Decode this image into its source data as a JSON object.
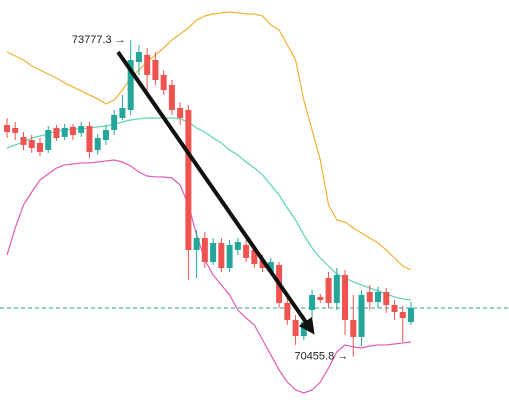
{
  "chart_data": {
    "type": "candlestick",
    "ylim": [
      69979,
      74200
    ],
    "up_color": "#26a69a",
    "down_color": "#ef5350",
    "candles": {
      "open": [
        72888,
        72856,
        72762,
        72730,
        72699,
        72625,
        72856,
        72762,
        72868,
        72804,
        72877,
        72625,
        72730,
        72835,
        72961,
        73045,
        73549,
        73623,
        73570,
        73413,
        73308,
        73066,
        73045,
        71575,
        71701,
        71449,
        71649,
        71386,
        71575,
        71628,
        71575,
        71470,
        71344,
        71418,
        71019,
        70840,
        70672,
        70945,
        71082,
        71281,
        71019,
        71313,
        70840,
        70662,
        71134,
        71029,
        71134,
        70998,
        70924,
        70819
      ],
      "high": [
        72961,
        72919,
        72814,
        72783,
        72751,
        72877,
        72888,
        72898,
        72898,
        72919,
        72919,
        72793,
        72888,
        73045,
        73203,
        73777.3,
        73728,
        73696,
        73654,
        73465,
        73360,
        73129,
        73098,
        71785,
        71764,
        71701,
        71701,
        71680,
        71701,
        71680,
        71628,
        71523,
        71491,
        71449,
        71071,
        70893,
        70893,
        71155,
        71113,
        71344,
        71386,
        71365,
        71103,
        71155,
        71208,
        71187,
        71176,
        71050,
        70987,
        71029
      ],
      "low": [
        72751,
        72730,
        72625,
        72594,
        72562,
        72594,
        72721,
        72730,
        72730,
        72762,
        72541,
        72573,
        72678,
        72783,
        72940,
        72993,
        73413,
        73255,
        73308,
        73203,
        72993,
        72888,
        71260,
        71281,
        71386,
        71418,
        71344,
        71344,
        71523,
        71449,
        71386,
        71344,
        71313,
        70966,
        70788,
        70578,
        70630,
        70861,
        71019,
        70966,
        70945,
        70683,
        70455.8,
        70567,
        70945,
        70966,
        70914,
        70840,
        70609,
        70788
      ],
      "close": [
        72814,
        72804,
        72678,
        72646,
        72604,
        72835,
        72751,
        72856,
        72783,
        72877,
        72604,
        72751,
        72835,
        72993,
        73066,
        73570,
        73654,
        73413,
        73360,
        73255,
        73045,
        72961,
        71575,
        71701,
        71449,
        71649,
        71386,
        71628,
        71659,
        71491,
        71428,
        71386,
        71449,
        71019,
        70840,
        70672,
        70819,
        71103,
        71050,
        71019,
        71313,
        70840,
        70662,
        71103,
        71029,
        71134,
        70998,
        70924,
        70861,
        70966
      ]
    },
    "lines": [
      {
        "color": "#f2b134",
        "values": [
          73654,
          73612,
          73570,
          73507,
          73465,
          73423,
          73381,
          73329,
          73287,
          73245,
          73203,
          73161,
          73108,
          73150,
          73255,
          73381,
          73465,
          73549,
          73623,
          73696,
          73780,
          73843,
          73906,
          73990,
          74032,
          74053,
          74064,
          74074,
          74064,
          74053,
          74053,
          74032,
          73938,
          73885,
          73728,
          73570,
          73150,
          72835,
          72520,
          72048,
          71890,
          71869,
          71806,
          71754,
          71701,
          71649,
          71575,
          71491,
          71407,
          71365
        ]
      },
      {
        "color": "#5fd3b8",
        "values": [
          72646,
          72678,
          72709,
          72751,
          72772,
          72793,
          72825,
          72835,
          72846,
          72846,
          72856,
          72867,
          72877,
          72898,
          72919,
          72940,
          72951,
          72961,
          72961,
          72961,
          72961,
          72951,
          72919,
          72856,
          72814,
          72751,
          72699,
          72625,
          72573,
          72499,
          72436,
          72363,
          72258,
          72153,
          72016,
          71890,
          71733,
          71596,
          71491,
          71407,
          71323,
          71281,
          71239,
          71208,
          71176,
          71145,
          71113,
          71082,
          71061,
          71050
        ]
      },
      {
        "color": "#e05cb8",
        "values": [
          71523,
          71806,
          72048,
          72184,
          72310,
          72373,
          72436,
          72468,
          72478,
          72489,
          72489,
          72499,
          72510,
          72520,
          72499,
          72457,
          72394,
          72352,
          72342,
          72342,
          72331,
          72258,
          72048,
          71733,
          71470,
          71313,
          71208,
          71103,
          70945,
          70861,
          70788,
          70630,
          70473,
          70315,
          70189,
          70105,
          70074,
          70105,
          70189,
          70336,
          70504,
          70578,
          70557,
          70546,
          70567,
          70578,
          70578,
          70588,
          70599,
          70609
        ]
      }
    ],
    "annotations": [
      {
        "text": "73777.3 →",
        "value": 73777.3
      },
      {
        "text": "70455.8 →",
        "value": 70455.8
      }
    ]
  }
}
